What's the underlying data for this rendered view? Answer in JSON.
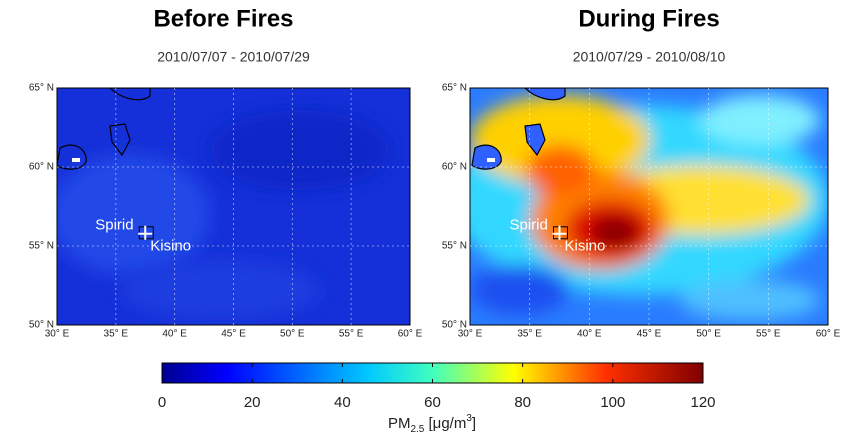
{
  "panels": [
    {
      "title": "Before Fires",
      "subtitle": "2010/07/07 - 2010/07/29",
      "xlim": [
        30,
        60
      ],
      "ylim": [
        50,
        65
      ],
      "xticks": [
        {
          "value": 30,
          "label": "30° E"
        },
        {
          "value": 35,
          "label": "35° E"
        },
        {
          "value": 40,
          "label": "40° E"
        },
        {
          "value": 45,
          "label": "45° E"
        },
        {
          "value": 50,
          "label": "50° E"
        },
        {
          "value": 55,
          "label": "55° E"
        },
        {
          "value": 60,
          "label": "60° E"
        }
      ],
      "yticks": [
        {
          "value": 50,
          "label": "50° N"
        },
        {
          "value": 55,
          "label": "55° N"
        },
        {
          "value": 60,
          "label": "60° N"
        },
        {
          "value": 65,
          "label": "65° N"
        }
      ],
      "places": [
        "Spirid",
        "Kisino"
      ]
    },
    {
      "title": "During Fires",
      "subtitle": "2010/07/29 - 2010/08/10",
      "xlim": [
        30,
        60
      ],
      "ylim": [
        50,
        65
      ],
      "xticks": [
        {
          "value": 30,
          "label": "30° E"
        },
        {
          "value": 35,
          "label": "35° E"
        },
        {
          "value": 40,
          "label": "40° E"
        },
        {
          "value": 45,
          "label": "45° E"
        },
        {
          "value": 50,
          "label": "50° E"
        },
        {
          "value": 55,
          "label": "55° E"
        },
        {
          "value": 60,
          "label": "60° E"
        }
      ],
      "yticks": [
        {
          "value": 50,
          "label": "50° N"
        },
        {
          "value": 55,
          "label": "55° N"
        },
        {
          "value": 60,
          "label": "60° N"
        },
        {
          "value": 65,
          "label": "65° N"
        }
      ],
      "places": [
        "Spirid",
        "Kisino"
      ]
    }
  ],
  "colorbar": {
    "lim": [
      0,
      120
    ],
    "ticks": [
      0,
      20,
      40,
      60,
      80,
      100,
      120
    ],
    "label": [
      "PM",
      "2.5",
      " [μg/m",
      "3",
      "]"
    ]
  }
}
